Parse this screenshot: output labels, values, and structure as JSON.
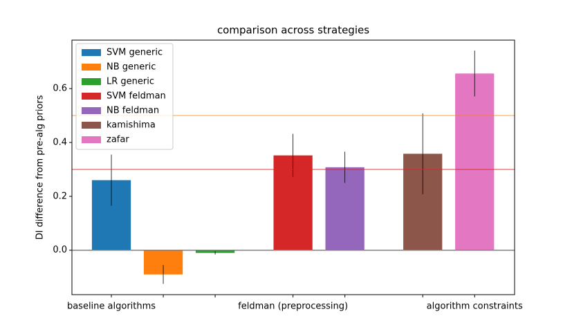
{
  "chart_data": {
    "type": "bar",
    "title": "comparison across strategies",
    "ylabel": "DI difference from pre-alg priors",
    "xlim": [
      -0.76,
      7.77
    ],
    "ylim": [
      -0.165,
      0.78
    ],
    "xticks": [
      {
        "value": 0,
        "label": "baseline algorithms"
      },
      {
        "value": 1,
        "label": null
      },
      {
        "value": 2,
        "label": null
      },
      {
        "value": 3.5,
        "label": "feldman (preprocessing)"
      },
      {
        "value": 4.5,
        "label": null
      },
      {
        "value": 6,
        "label": null
      },
      {
        "value": 7,
        "label": "algorithm constraints"
      }
    ],
    "yticks": [
      0.0,
      0.2,
      0.4,
      0.6
    ],
    "bar_width": 0.75,
    "reference_lines": [
      {
        "value": 0.5,
        "color": "#ff7f0e"
      },
      {
        "value": 0.3,
        "color": "#d62728"
      },
      {
        "value": 0,
        "color": "#808080"
      }
    ],
    "legend": "upper left",
    "series": [
      {
        "name": "SVM generic",
        "color": "#1f77b4",
        "x": [
          0
        ],
        "values": [
          0.26
        ],
        "errors": [
          0.095
        ]
      },
      {
        "name": "NB generic",
        "color": "#ff7f0e",
        "x": [
          1
        ],
        "values": [
          -0.09
        ],
        "errors": [
          0.035
        ]
      },
      {
        "name": "LR generic",
        "color": "#2ca02c",
        "x": [
          2
        ],
        "values": [
          -0.01
        ],
        "errors": [
          0.006
        ]
      },
      {
        "name": "SVM feldman",
        "color": "#d62728",
        "x": [
          3.5
        ],
        "values": [
          0.352
        ],
        "errors": [
          0.08
        ]
      },
      {
        "name": "NB feldman",
        "color": "#9467bd",
        "x": [
          4.5
        ],
        "values": [
          0.308
        ],
        "errors": [
          0.058
        ]
      },
      {
        "name": "kamishima",
        "color": "#8c564b",
        "x": [
          6
        ],
        "values": [
          0.358
        ],
        "errors": [
          0.15
        ]
      },
      {
        "name": "zafar",
        "color": "#e377c2",
        "x": [
          7
        ],
        "values": [
          0.656
        ],
        "errors": [
          0.085
        ]
      }
    ]
  }
}
